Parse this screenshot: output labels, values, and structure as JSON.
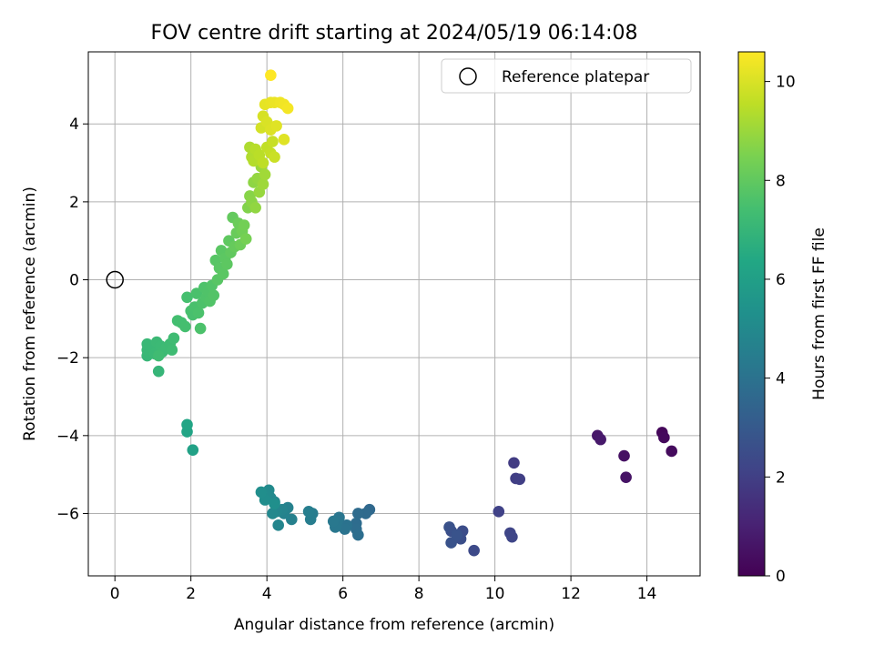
{
  "chart_data": {
    "type": "scatter",
    "title": "FOV centre drift starting at 2024/05/19 06:14:08",
    "xlabel": "Angular distance from reference (arcmin)",
    "ylabel": "Rotation from reference (arcmin)",
    "xlim": [
      -0.7,
      15.4
    ],
    "ylim": [
      -7.6,
      5.85
    ],
    "xticks": [
      0,
      2,
      4,
      6,
      8,
      10,
      12,
      14
    ],
    "yticks": [
      -6,
      -4,
      -2,
      0,
      2,
      4
    ],
    "grid": true,
    "legend": {
      "placement": "top-right",
      "entries": [
        "Reference platepar"
      ]
    },
    "reference_point": {
      "x": 0,
      "y": 0
    },
    "colorbar": {
      "label": "Hours from first FF file",
      "range": [
        0,
        10.6
      ],
      "ticks": [
        0,
        2,
        4,
        6,
        8,
        10
      ],
      "colormap": "viridis"
    },
    "points": [
      {
        "x": 14.4,
        "y": -3.92,
        "c": 0.2
      },
      {
        "x": 14.45,
        "y": -4.05,
        "c": 0.25
      },
      {
        "x": 14.65,
        "y": -4.4,
        "c": 0.3
      },
      {
        "x": 13.4,
        "y": -4.52,
        "c": 0.5
      },
      {
        "x": 13.45,
        "y": -5.07,
        "c": 0.55
      },
      {
        "x": 12.7,
        "y": -4.0,
        "c": 0.7
      },
      {
        "x": 12.78,
        "y": -4.1,
        "c": 0.75
      },
      {
        "x": 10.5,
        "y": -4.7,
        "c": 1.9
      },
      {
        "x": 10.55,
        "y": -5.1,
        "c": 1.95
      },
      {
        "x": 10.65,
        "y": -5.12,
        "c": 2.0
      },
      {
        "x": 10.1,
        "y": -5.95,
        "c": 2.1
      },
      {
        "x": 10.4,
        "y": -6.5,
        "c": 2.2
      },
      {
        "x": 10.45,
        "y": -6.6,
        "c": 2.25
      },
      {
        "x": 9.45,
        "y": -6.95,
        "c": 2.4
      },
      {
        "x": 9.15,
        "y": -6.45,
        "c": 2.5
      },
      {
        "x": 9.1,
        "y": -6.65,
        "c": 2.55
      },
      {
        "x": 8.85,
        "y": -6.45,
        "c": 2.6
      },
      {
        "x": 8.8,
        "y": -6.35,
        "c": 2.65
      },
      {
        "x": 8.85,
        "y": -6.75,
        "c": 2.7
      },
      {
        "x": 9.0,
        "y": -6.55,
        "c": 2.75
      },
      {
        "x": 6.7,
        "y": -5.9,
        "c": 3.6
      },
      {
        "x": 6.6,
        "y": -6.0,
        "c": 3.65
      },
      {
        "x": 6.4,
        "y": -6.0,
        "c": 3.7
      },
      {
        "x": 6.35,
        "y": -6.25,
        "c": 3.75
      },
      {
        "x": 6.35,
        "y": -6.4,
        "c": 3.8
      },
      {
        "x": 6.4,
        "y": -6.55,
        "c": 3.85
      },
      {
        "x": 6.1,
        "y": -6.3,
        "c": 4.0
      },
      {
        "x": 6.05,
        "y": -6.4,
        "c": 4.05
      },
      {
        "x": 5.9,
        "y": -6.1,
        "c": 4.1
      },
      {
        "x": 5.85,
        "y": -6.2,
        "c": 4.15
      },
      {
        "x": 5.8,
        "y": -6.35,
        "c": 4.2
      },
      {
        "x": 5.75,
        "y": -6.2,
        "c": 4.25
      },
      {
        "x": 5.2,
        "y": -6.0,
        "c": 4.4
      },
      {
        "x": 5.15,
        "y": -6.15,
        "c": 4.45
      },
      {
        "x": 5.1,
        "y": -5.95,
        "c": 4.5
      },
      {
        "x": 4.65,
        "y": -6.15,
        "c": 4.6
      },
      {
        "x": 4.55,
        "y": -5.85,
        "c": 4.65
      },
      {
        "x": 4.45,
        "y": -6.0,
        "c": 4.7
      },
      {
        "x": 4.4,
        "y": -5.9,
        "c": 4.75
      },
      {
        "x": 4.3,
        "y": -6.3,
        "c": 4.8
      },
      {
        "x": 4.25,
        "y": -5.95,
        "c": 4.85
      },
      {
        "x": 4.2,
        "y": -5.7,
        "c": 4.9
      },
      {
        "x": 4.15,
        "y": -6.0,
        "c": 4.95
      },
      {
        "x": 4.1,
        "y": -5.6,
        "c": 5.0
      },
      {
        "x": 4.05,
        "y": -5.4,
        "c": 5.05
      },
      {
        "x": 4.0,
        "y": -5.55,
        "c": 5.1
      },
      {
        "x": 3.95,
        "y": -5.65,
        "c": 5.15
      },
      {
        "x": 3.85,
        "y": -5.45,
        "c": 5.2
      },
      {
        "x": 4.2,
        "y": -5.75,
        "c": 5.25
      },
      {
        "x": 2.05,
        "y": -4.37,
        "c": 6.1
      },
      {
        "x": 1.9,
        "y": -3.9,
        "c": 6.2
      },
      {
        "x": 1.9,
        "y": -3.72,
        "c": 6.25
      },
      {
        "x": 1.15,
        "y": -2.35,
        "c": 7.0
      },
      {
        "x": 0.85,
        "y": -1.95,
        "c": 7.05
      },
      {
        "x": 0.85,
        "y": -1.8,
        "c": 7.08
      },
      {
        "x": 0.85,
        "y": -1.65,
        "c": 7.1
      },
      {
        "x": 1.0,
        "y": -1.75,
        "c": 7.12
      },
      {
        "x": 1.05,
        "y": -1.9,
        "c": 7.14
      },
      {
        "x": 1.1,
        "y": -1.6,
        "c": 7.16
      },
      {
        "x": 1.2,
        "y": -1.7,
        "c": 7.18
      },
      {
        "x": 1.25,
        "y": -1.85,
        "c": 7.2
      },
      {
        "x": 1.35,
        "y": -1.75,
        "c": 7.22
      },
      {
        "x": 1.45,
        "y": -1.65,
        "c": 7.24
      },
      {
        "x": 1.5,
        "y": -1.8,
        "c": 7.26
      },
      {
        "x": 1.55,
        "y": -1.5,
        "c": 7.28
      },
      {
        "x": 1.15,
        "y": -1.95,
        "c": 7.3
      },
      {
        "x": 1.65,
        "y": -1.05,
        "c": 7.4
      },
      {
        "x": 1.75,
        "y": -1.1,
        "c": 7.42
      },
      {
        "x": 1.85,
        "y": -1.2,
        "c": 7.44
      },
      {
        "x": 1.9,
        "y": -0.45,
        "c": 7.46
      },
      {
        "x": 2.0,
        "y": -0.8,
        "c": 7.48
      },
      {
        "x": 2.05,
        "y": -0.9,
        "c": 7.5
      },
      {
        "x": 2.1,
        "y": -0.7,
        "c": 7.52
      },
      {
        "x": 2.15,
        "y": -0.35,
        "c": 7.54
      },
      {
        "x": 2.2,
        "y": -0.85,
        "c": 7.56
      },
      {
        "x": 2.25,
        "y": -1.25,
        "c": 7.58
      },
      {
        "x": 2.3,
        "y": -0.6,
        "c": 7.6
      },
      {
        "x": 2.35,
        "y": -0.2,
        "c": 7.62
      },
      {
        "x": 2.4,
        "y": -0.45,
        "c": 7.64
      },
      {
        "x": 2.45,
        "y": -0.3,
        "c": 7.66
      },
      {
        "x": 2.5,
        "y": -0.55,
        "c": 7.68
      },
      {
        "x": 2.55,
        "y": -0.15,
        "c": 7.7
      },
      {
        "x": 2.6,
        "y": -0.4,
        "c": 7.72
      },
      {
        "x": 2.65,
        "y": 0.5,
        "c": 7.8
      },
      {
        "x": 2.7,
        "y": 0.0,
        "c": 7.82
      },
      {
        "x": 2.75,
        "y": 0.3,
        "c": 7.84
      },
      {
        "x": 2.8,
        "y": 0.75,
        "c": 7.86
      },
      {
        "x": 2.85,
        "y": 0.15,
        "c": 7.88
      },
      {
        "x": 2.9,
        "y": 0.55,
        "c": 7.9
      },
      {
        "x": 2.95,
        "y": 0.4,
        "c": 7.92
      },
      {
        "x": 3.0,
        "y": 1.0,
        "c": 7.96
      },
      {
        "x": 3.05,
        "y": 0.7,
        "c": 8.0
      },
      {
        "x": 3.1,
        "y": 1.6,
        "c": 8.05
      },
      {
        "x": 3.15,
        "y": 0.85,
        "c": 8.1
      },
      {
        "x": 3.2,
        "y": 1.2,
        "c": 8.15
      },
      {
        "x": 3.25,
        "y": 1.45,
        "c": 8.2
      },
      {
        "x": 3.3,
        "y": 0.9,
        "c": 8.25
      },
      {
        "x": 3.35,
        "y": 1.25,
        "c": 8.3
      },
      {
        "x": 3.4,
        "y": 1.4,
        "c": 8.35
      },
      {
        "x": 3.45,
        "y": 1.05,
        "c": 8.4
      },
      {
        "x": 3.5,
        "y": 1.85,
        "c": 8.6
      },
      {
        "x": 3.55,
        "y": 2.15,
        "c": 8.7
      },
      {
        "x": 3.6,
        "y": 2.0,
        "c": 8.75
      },
      {
        "x": 3.65,
        "y": 2.5,
        "c": 8.8
      },
      {
        "x": 3.7,
        "y": 1.85,
        "c": 8.85
      },
      {
        "x": 3.75,
        "y": 2.6,
        "c": 8.9
      },
      {
        "x": 3.8,
        "y": 2.25,
        "c": 8.95
      },
      {
        "x": 3.85,
        "y": 2.9,
        "c": 9.0
      },
      {
        "x": 3.9,
        "y": 2.45,
        "c": 9.05
      },
      {
        "x": 3.95,
        "y": 2.7,
        "c": 9.1
      },
      {
        "x": 3.55,
        "y": 3.4,
        "c": 9.3
      },
      {
        "x": 3.6,
        "y": 3.15,
        "c": 9.35
      },
      {
        "x": 3.65,
        "y": 3.05,
        "c": 9.4
      },
      {
        "x": 3.7,
        "y": 3.35,
        "c": 9.45
      },
      {
        "x": 3.8,
        "y": 3.2,
        "c": 9.5
      },
      {
        "x": 3.9,
        "y": 3.0,
        "c": 9.55
      },
      {
        "x": 4.0,
        "y": 3.4,
        "c": 9.6
      },
      {
        "x": 4.1,
        "y": 3.25,
        "c": 9.65
      },
      {
        "x": 4.15,
        "y": 3.55,
        "c": 9.7
      },
      {
        "x": 4.2,
        "y": 3.15,
        "c": 9.75
      },
      {
        "x": 3.85,
        "y": 3.9,
        "c": 9.9
      },
      {
        "x": 3.9,
        "y": 4.2,
        "c": 9.95
      },
      {
        "x": 4.0,
        "y": 4.05,
        "c": 10.0
      },
      {
        "x": 4.1,
        "y": 3.85,
        "c": 10.05
      },
      {
        "x": 4.25,
        "y": 3.95,
        "c": 10.1
      },
      {
        "x": 4.45,
        "y": 3.6,
        "c": 10.1
      },
      {
        "x": 3.95,
        "y": 4.5,
        "c": 10.2
      },
      {
        "x": 4.1,
        "y": 4.55,
        "c": 10.25
      },
      {
        "x": 4.2,
        "y": 4.55,
        "c": 10.3
      },
      {
        "x": 4.35,
        "y": 4.55,
        "c": 10.35
      },
      {
        "x": 4.45,
        "y": 4.5,
        "c": 10.4
      },
      {
        "x": 4.55,
        "y": 4.4,
        "c": 10.45
      },
      {
        "x": 4.1,
        "y": 5.25,
        "c": 10.6
      }
    ]
  }
}
